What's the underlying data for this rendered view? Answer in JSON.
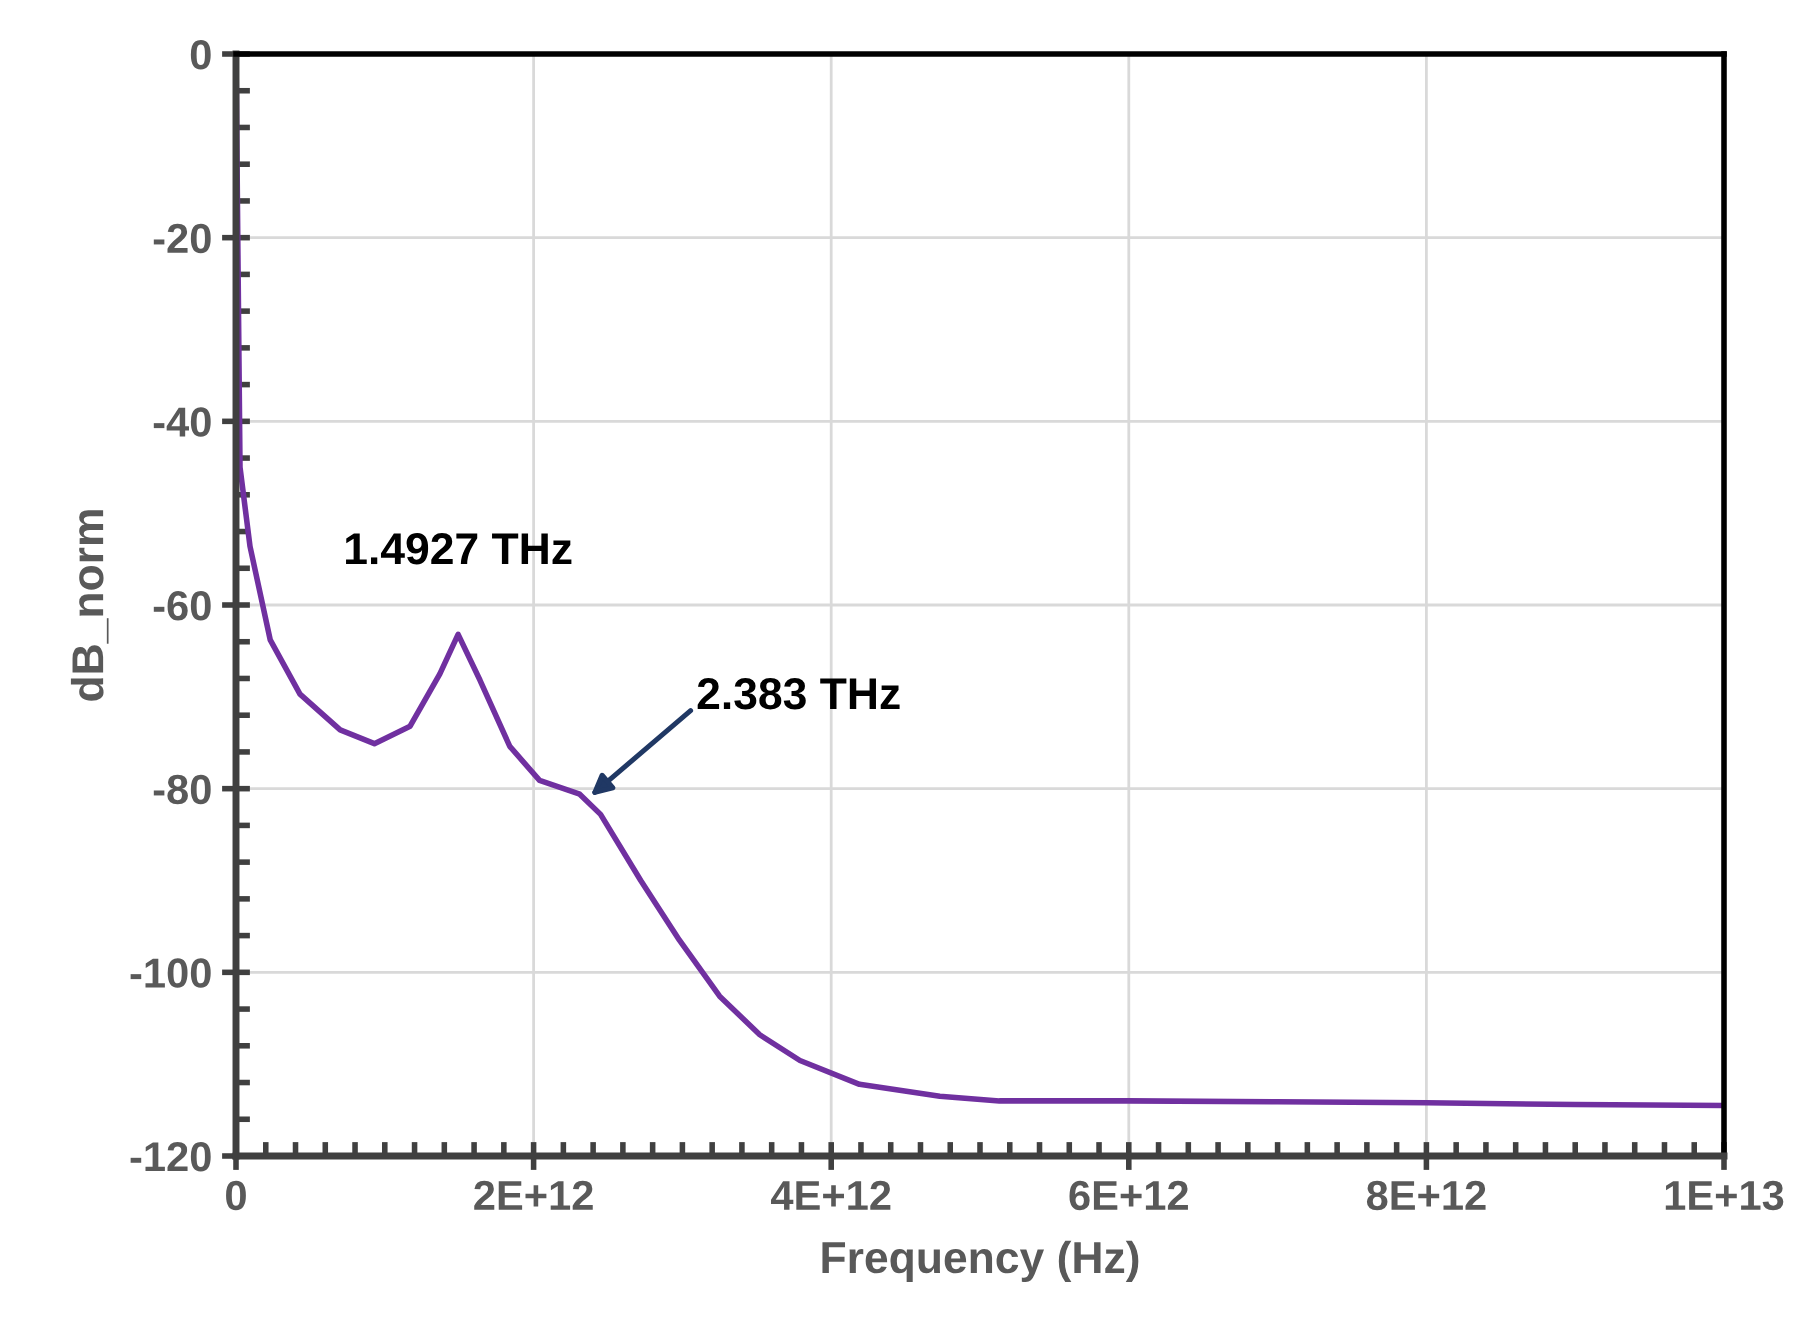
{
  "chart_data": {
    "type": "line",
    "xlabel": "Frequency (Hz)",
    "ylabel": "dB_norm",
    "x": [
      0,
      27000000000.0,
      94000000000.0,
      230000000000.0,
      430000000000.0,
      700000000000.0,
      930000000000.0,
      1170000000000.0,
      1370000000000.0,
      1492700000000.0,
      1640000000000.0,
      1840000000000.0,
      2040000000000.0,
      2310000000000.0,
      2450000000000.0,
      2720000000000.0,
      2980000000000.0,
      3250000000000.0,
      3520000000000.0,
      3790000000000.0,
      4190000000000.0,
      4730000000000.0,
      5130000000000.0,
      6000000000000.0,
      7000000000000.0,
      8000000000000.0,
      9000000000000.0,
      10000000000000.0
    ],
    "series": [
      {
        "color": "#7030a0",
        "values": [
          0,
          -45,
          -53.6,
          -63.8,
          -69.7,
          -73.6,
          -75.1,
          -73.2,
          -67.5,
          -63.2,
          -68.2,
          -75.4,
          -79.1,
          -80.6,
          -82.8,
          -90,
          -96.5,
          -102.6,
          -106.8,
          -109.6,
          -112.2,
          -113.5,
          -114,
          -114,
          -114.1,
          -114.2,
          -114.4,
          -114.5
        ]
      }
    ],
    "xlim": [
      0,
      10000000000000.0
    ],
    "xticks": [
      0,
      {
        "value": 2000000000000.0,
        "label": "2E+12"
      },
      {
        "value": 4000000000000.0,
        "label": "4E+12"
      },
      {
        "value": 6000000000000.0,
        "label": "6E+12"
      },
      {
        "value": 8000000000000.0,
        "label": "8E+12"
      },
      {
        "value": 10000000000000.0,
        "label": "1E+13"
      }
    ],
    "ylim": [
      -120,
      0
    ],
    "yticks": [
      -120,
      -100,
      -80,
      -60,
      -40,
      -20,
      0
    ],
    "grid": true,
    "marker": "none",
    "line_style": "solid",
    "annotations": [
      {
        "text": "1.4927 THz",
        "x": 1492700000000.0,
        "y": -63.2
      },
      {
        "text": "2.383 THz",
        "x": 2383000000000.0,
        "y": -80.8
      }
    ]
  }
}
